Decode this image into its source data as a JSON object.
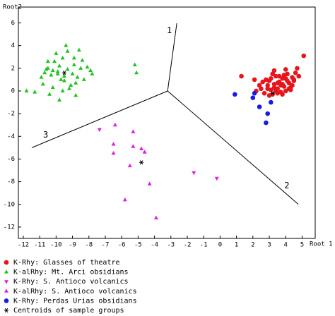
{
  "chart_data": {
    "type": "scatter",
    "x_label": "Root 1",
    "y_label": "Root2",
    "xlim": [
      -12.3,
      5.8
    ],
    "ylim": [
      -13,
      7.4
    ],
    "xticks": [
      -12,
      -11,
      -10,
      -9,
      -8,
      -7,
      -6,
      -5,
      -4,
      -3,
      -2,
      -1,
      0,
      1,
      2,
      3,
      4,
      5
    ],
    "yticks": [
      6,
      4,
      2,
      0,
      -2,
      -4,
      -6,
      -8,
      -10,
      -12
    ],
    "grid": false,
    "root_lines": [
      {
        "label": "1",
        "x": [
          -3.2,
          -2.64
        ],
        "y": [
          0,
          5.97
        ]
      },
      {
        "label": "2",
        "x": [
          -3.2,
          4.77
        ],
        "y": [
          0,
          -9.99
        ]
      },
      {
        "label": "3",
        "x": [
          -3.2,
          -11.48
        ],
        "y": [
          0,
          -5.0
        ]
      }
    ],
    "series": [
      {
        "name": "K-Rhy: Glasses of theatre",
        "color": "#e8141b",
        "marker": "circle",
        "x": [
          1.3,
          2.1,
          5.1,
          4.7,
          2.5,
          2.7,
          2.9,
          3.0,
          3.1,
          3.2,
          3.3,
          3.4,
          3.5,
          3.6,
          3.7,
          3.8,
          3.9,
          4.0,
          4.1,
          4.2,
          4.3,
          4.4,
          4.5,
          4.6,
          2.6,
          2.8,
          3.0,
          3.2,
          3.4,
          3.6,
          3.8,
          4.0,
          4.2,
          4.4,
          3.1,
          3.3,
          3.5,
          3.7,
          3.9,
          4.1,
          4.3,
          2.4,
          2.9,
          3.5,
          4.0,
          4.5,
          3.3,
          3.8,
          4.8,
          2.2
        ],
        "values": [
          1.3,
          1.0,
          3.1,
          2.0,
          0.2,
          -0.2,
          0.5,
          0.9,
          0.1,
          -0.3,
          0.6,
          1.3,
          0.2,
          0.8,
          -0.1,
          1.1,
          0.4,
          0.0,
          1.5,
          0.7,
          0.3,
          1.2,
          0.9,
          1.6,
          0.8,
          1.0,
          -0.4,
          1.5,
          0.0,
          1.3,
          0.6,
          1.9,
          0.2,
          0.5,
          1.1,
          0.3,
          -0.2,
          0.5,
          1.4,
          0.9,
          0.1,
          0.5,
          0.2,
          0.7,
          1.1,
          1.0,
          1.8,
          -0.3,
          1.3,
          0.0
        ]
      },
      {
        "name": "K-alRhy: Mt. Arci obsidians",
        "color": "#1fc41f",
        "marker": "triangle-up",
        "x": [
          -11.3,
          -10.8,
          -10.6,
          -10.5,
          -10.3,
          -10.2,
          -10.0,
          -9.9,
          -9.8,
          -9.6,
          -9.5,
          -9.4,
          -9.3,
          -9.2,
          -9.0,
          -8.9,
          -8.8,
          -8.7,
          -8.6,
          -8.5,
          -8.3,
          -8.1,
          -7.9,
          -10.7,
          -10.4,
          -10.1,
          -9.7,
          -9.3,
          -9.1,
          -8.8,
          -8.4,
          -10.9,
          -9.8,
          -9.5,
          -10.2,
          -9.9,
          -9.6,
          -8.9,
          -7.8,
          -10.5,
          -11.8,
          -5.2,
          -5.1
        ],
        "values": [
          -0.1,
          0.6,
          1.9,
          2.6,
          1.4,
          0.3,
          3.3,
          1.7,
          -0.8,
          2.9,
          0.9,
          4.0,
          3.5,
          0.2,
          1.5,
          2.3,
          0.7,
          1.2,
          3.6,
          2.0,
          1.0,
          2.1,
          1.8,
          1.6,
          -0.3,
          2.6,
          1.0,
          1.9,
          0.5,
          -0.4,
          2.7,
          1.2,
          2.2,
          1.3,
          1.8,
          1.5,
          0.0,
          2.9,
          1.5,
          2.0,
          0.0,
          2.3,
          1.6
        ]
      },
      {
        "name": "K-Rhy: S. Antioco volcanics",
        "color": "#e020e0",
        "marker": "triangle-down",
        "x": [
          -7.35,
          -1.6,
          -0.2
        ],
        "values": [
          -3.4,
          -7.2,
          -7.7
        ]
      },
      {
        "name": "K-alRhy: S. Antioco volcanics",
        "color": "#e020e0",
        "marker": "triangle-up",
        "x": [
          -6.4,
          -5.3,
          -6.5,
          -6.5,
          -5.3,
          -4.8,
          -4.6,
          -5.5,
          -4.3,
          -5.8,
          -3.9
        ],
        "values": [
          -3.0,
          -3.6,
          -4.7,
          -5.5,
          -4.9,
          -5.1,
          -5.4,
          -6.6,
          -8.2,
          -9.6,
          -11.2
        ]
      },
      {
        "name": "K-Rhy: Perdas Urias obsidians",
        "color": "#1a1ae6",
        "marker": "circle",
        "x": [
          0.9,
          2.1,
          2.0,
          2.4,
          2.9,
          2.8,
          3.1
        ],
        "values": [
          -0.3,
          -0.2,
          -0.6,
          -1.4,
          -2.0,
          -2.8,
          -1.0
        ]
      },
      {
        "name": "Centroids of sample groups",
        "color": "#000000",
        "marker": "asterisk",
        "x": [
          -9.5,
          3.2,
          -4.8
        ],
        "values": [
          1.6,
          -0.2,
          -6.3
        ]
      }
    ]
  }
}
